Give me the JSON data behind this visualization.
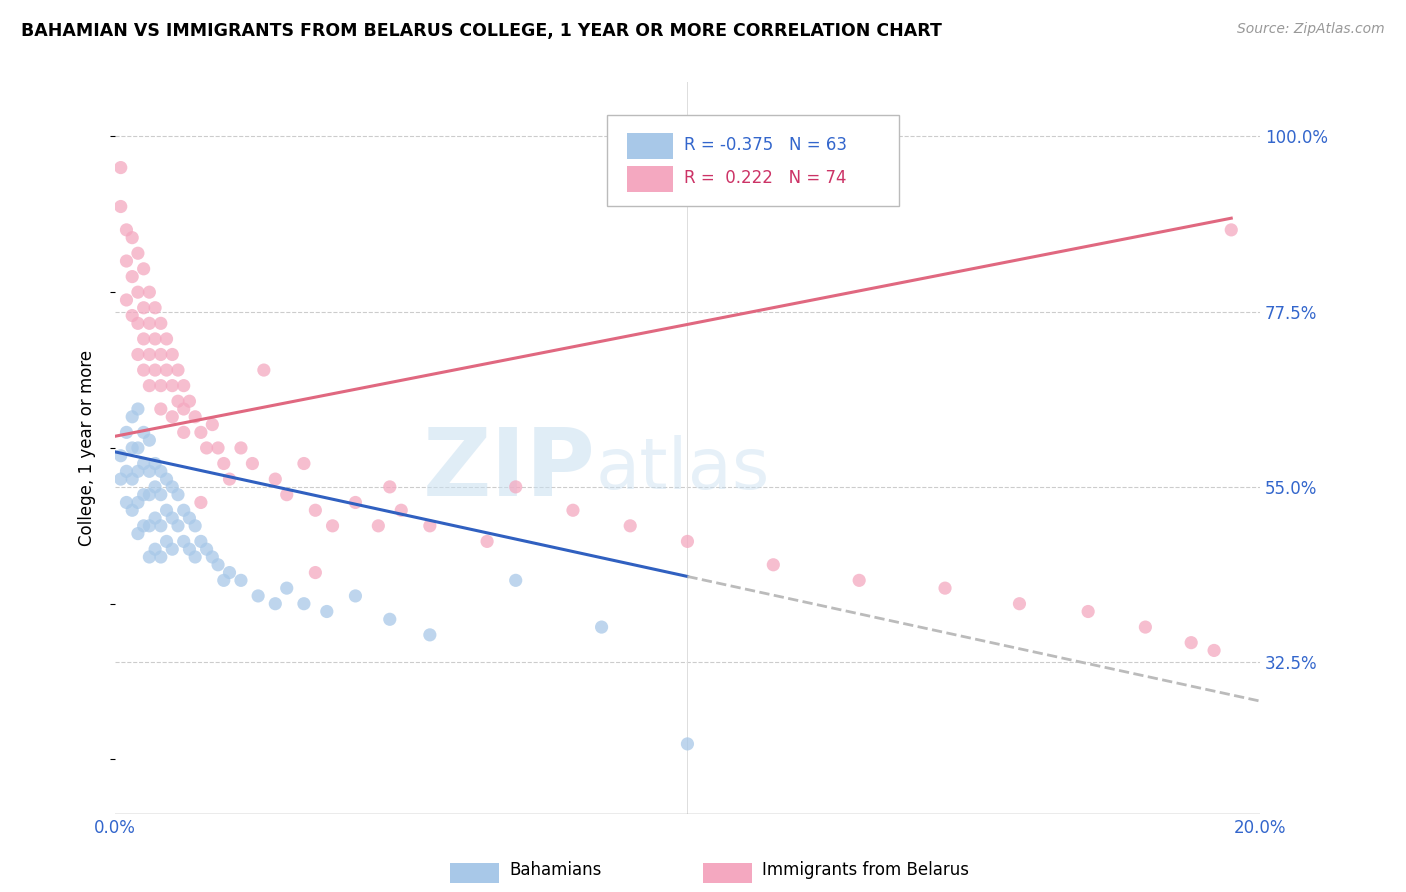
{
  "title": "BAHAMIAN VS IMMIGRANTS FROM BELARUS COLLEGE, 1 YEAR OR MORE CORRELATION CHART",
  "source": "Source: ZipAtlas.com",
  "ylabel": "College, 1 year or more",
  "xlim": [
    0.0,
    0.2
  ],
  "ylim": [
    0.13,
    1.07
  ],
  "x_tick_positions": [
    0.0,
    0.04,
    0.08,
    0.12,
    0.16,
    0.2
  ],
  "x_tick_labels": [
    "0.0%",
    "",
    "",
    "",
    "",
    "20.0%"
  ],
  "y_ticks_right": [
    0.325,
    0.55,
    0.775,
    1.0
  ],
  "y_tick_labels_right": [
    "32.5%",
    "55.0%",
    "77.5%",
    "100.0%"
  ],
  "watermark_zip": "ZIP",
  "watermark_atlas": "atlas",
  "bahamian_color": "#a8c8e8",
  "belarus_color": "#f4a8c0",
  "blue_line_color": "#3060c0",
  "pink_line_color": "#e06880",
  "gray_dashed_color": "#bbbbbb",
  "blue_line_x0": 0.0,
  "blue_line_x1": 0.1,
  "blue_line_dash_x1": 0.2,
  "blue_line_y_at_0": 0.595,
  "blue_line_y_at_01": 0.435,
  "pink_line_x0": 0.0,
  "pink_line_x1": 0.195,
  "pink_line_y_at_0": 0.615,
  "pink_line_y_at_195": 0.895,
  "bahamian_x": [
    0.001,
    0.001,
    0.002,
    0.002,
    0.002,
    0.003,
    0.003,
    0.003,
    0.003,
    0.004,
    0.004,
    0.004,
    0.004,
    0.004,
    0.005,
    0.005,
    0.005,
    0.005,
    0.006,
    0.006,
    0.006,
    0.006,
    0.006,
    0.007,
    0.007,
    0.007,
    0.007,
    0.008,
    0.008,
    0.008,
    0.008,
    0.009,
    0.009,
    0.009,
    0.01,
    0.01,
    0.01,
    0.011,
    0.011,
    0.012,
    0.012,
    0.013,
    0.013,
    0.014,
    0.014,
    0.015,
    0.016,
    0.017,
    0.018,
    0.019,
    0.02,
    0.022,
    0.025,
    0.028,
    0.03,
    0.033,
    0.037,
    0.042,
    0.048,
    0.055,
    0.07,
    0.085,
    0.1
  ],
  "bahamian_y": [
    0.59,
    0.56,
    0.62,
    0.57,
    0.53,
    0.64,
    0.6,
    0.56,
    0.52,
    0.65,
    0.6,
    0.57,
    0.53,
    0.49,
    0.62,
    0.58,
    0.54,
    0.5,
    0.61,
    0.57,
    0.54,
    0.5,
    0.46,
    0.58,
    0.55,
    0.51,
    0.47,
    0.57,
    0.54,
    0.5,
    0.46,
    0.56,
    0.52,
    0.48,
    0.55,
    0.51,
    0.47,
    0.54,
    0.5,
    0.52,
    0.48,
    0.51,
    0.47,
    0.5,
    0.46,
    0.48,
    0.47,
    0.46,
    0.45,
    0.43,
    0.44,
    0.43,
    0.41,
    0.4,
    0.42,
    0.4,
    0.39,
    0.41,
    0.38,
    0.36,
    0.43,
    0.37,
    0.22
  ],
  "belarus_x": [
    0.001,
    0.001,
    0.002,
    0.002,
    0.002,
    0.003,
    0.003,
    0.003,
    0.004,
    0.004,
    0.004,
    0.004,
    0.005,
    0.005,
    0.005,
    0.005,
    0.006,
    0.006,
    0.006,
    0.006,
    0.007,
    0.007,
    0.007,
    0.008,
    0.008,
    0.008,
    0.009,
    0.009,
    0.01,
    0.01,
    0.01,
    0.011,
    0.011,
    0.012,
    0.012,
    0.012,
    0.013,
    0.014,
    0.015,
    0.016,
    0.017,
    0.018,
    0.019,
    0.02,
    0.022,
    0.024,
    0.026,
    0.028,
    0.03,
    0.033,
    0.035,
    0.038,
    0.042,
    0.046,
    0.05,
    0.055,
    0.065,
    0.07,
    0.08,
    0.09,
    0.1,
    0.115,
    0.13,
    0.145,
    0.158,
    0.17,
    0.18,
    0.188,
    0.192,
    0.195,
    0.008,
    0.015,
    0.035,
    0.048
  ],
  "belarus_y": [
    0.96,
    0.91,
    0.88,
    0.84,
    0.79,
    0.87,
    0.82,
    0.77,
    0.85,
    0.8,
    0.76,
    0.72,
    0.83,
    0.78,
    0.74,
    0.7,
    0.8,
    0.76,
    0.72,
    0.68,
    0.78,
    0.74,
    0.7,
    0.76,
    0.72,
    0.68,
    0.74,
    0.7,
    0.72,
    0.68,
    0.64,
    0.7,
    0.66,
    0.68,
    0.65,
    0.62,
    0.66,
    0.64,
    0.62,
    0.6,
    0.63,
    0.6,
    0.58,
    0.56,
    0.6,
    0.58,
    0.7,
    0.56,
    0.54,
    0.58,
    0.52,
    0.5,
    0.53,
    0.5,
    0.52,
    0.5,
    0.48,
    0.55,
    0.52,
    0.5,
    0.48,
    0.45,
    0.43,
    0.42,
    0.4,
    0.39,
    0.37,
    0.35,
    0.34,
    0.88,
    0.65,
    0.53,
    0.44,
    0.55
  ]
}
